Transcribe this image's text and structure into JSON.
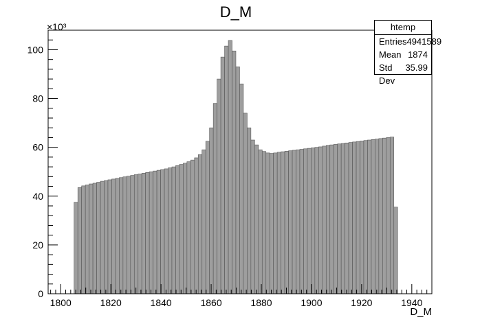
{
  "chart_data": {
    "type": "bar",
    "title": "D_M",
    "xlabel": "D_M",
    "ylabel": "",
    "xlim": [
      1795,
      1948
    ],
    "ylim": [
      0,
      108000
    ],
    "y_multiplier_label": "×10³",
    "x_ticks": [
      1800,
      1820,
      1840,
      1860,
      1880,
      1900,
      1920,
      1940
    ],
    "y_ticks": [
      0,
      20,
      40,
      60,
      80,
      100
    ],
    "y_tick_scale": 1000,
    "bin_width": 1.5,
    "x": [
      1806.1,
      1807.6,
      1809.1,
      1810.6,
      1812.1,
      1813.6,
      1815.1,
      1816.6,
      1818.1,
      1819.6,
      1821.1,
      1822.6,
      1824.1,
      1825.6,
      1827.1,
      1828.6,
      1830.1,
      1831.6,
      1833.1,
      1834.6,
      1836.1,
      1837.6,
      1839.1,
      1840.6,
      1842.1,
      1843.6,
      1845.1,
      1846.6,
      1848.1,
      1849.6,
      1851.1,
      1852.6,
      1854.1,
      1855.6,
      1857.1,
      1858.6,
      1860.1,
      1861.6,
      1863.1,
      1864.6,
      1866.1,
      1867.6,
      1869.1,
      1870.6,
      1872.1,
      1873.6,
      1875.1,
      1876.6,
      1878.1,
      1879.6,
      1881.1,
      1882.6,
      1884.1,
      1885.6,
      1887.1,
      1888.6,
      1890.1,
      1891.6,
      1893.1,
      1894.6,
      1896.1,
      1897.6,
      1899.1,
      1900.6,
      1902.1,
      1903.6,
      1905.1,
      1906.6,
      1908.1,
      1909.6,
      1911.1,
      1912.6,
      1914.1,
      1915.6,
      1917.1,
      1918.6,
      1920.1,
      1921.6,
      1923.1,
      1924.6,
      1926.1,
      1927.6,
      1929.1,
      1930.6,
      1932.1,
      1933.6,
      1935.1
    ],
    "values": [
      37500,
      43500,
      44200,
      44600,
      45000,
      45300,
      45700,
      46100,
      46400,
      46700,
      47000,
      47300,
      47600,
      47900,
      48200,
      48500,
      48800,
      49100,
      49400,
      49700,
      50000,
      50300,
      50600,
      50900,
      51200,
      51600,
      52000,
      52500,
      53000,
      53500,
      54100,
      54800,
      55700,
      57000,
      59000,
      62500,
      68000,
      78000,
      88000,
      97000,
      101500,
      103800,
      99500,
      93000,
      86000,
      74000,
      68000,
      63000,
      61000,
      59000,
      58300,
      57700,
      57500,
      57700,
      58000,
      58200,
      58400,
      58600,
      58800,
      59000,
      59200,
      59400,
      59600,
      59800,
      60000,
      60200,
      60500,
      60800,
      61000,
      61200,
      61400,
      61600,
      61800,
      62000,
      62200,
      62400,
      62600,
      62800,
      63000,
      63200,
      63400,
      63600,
      63800,
      64000,
      64200,
      35500,
      0
    ],
    "bar_color": "#9e9e9e",
    "grid": false,
    "legend": "none"
  },
  "stats": {
    "title": "htemp",
    "rows": [
      {
        "label": "Entries",
        "value": "4941589"
      },
      {
        "label": "Mean",
        "value": "1874"
      },
      {
        "label": "Std Dev",
        "value": "35.99"
      }
    ]
  }
}
